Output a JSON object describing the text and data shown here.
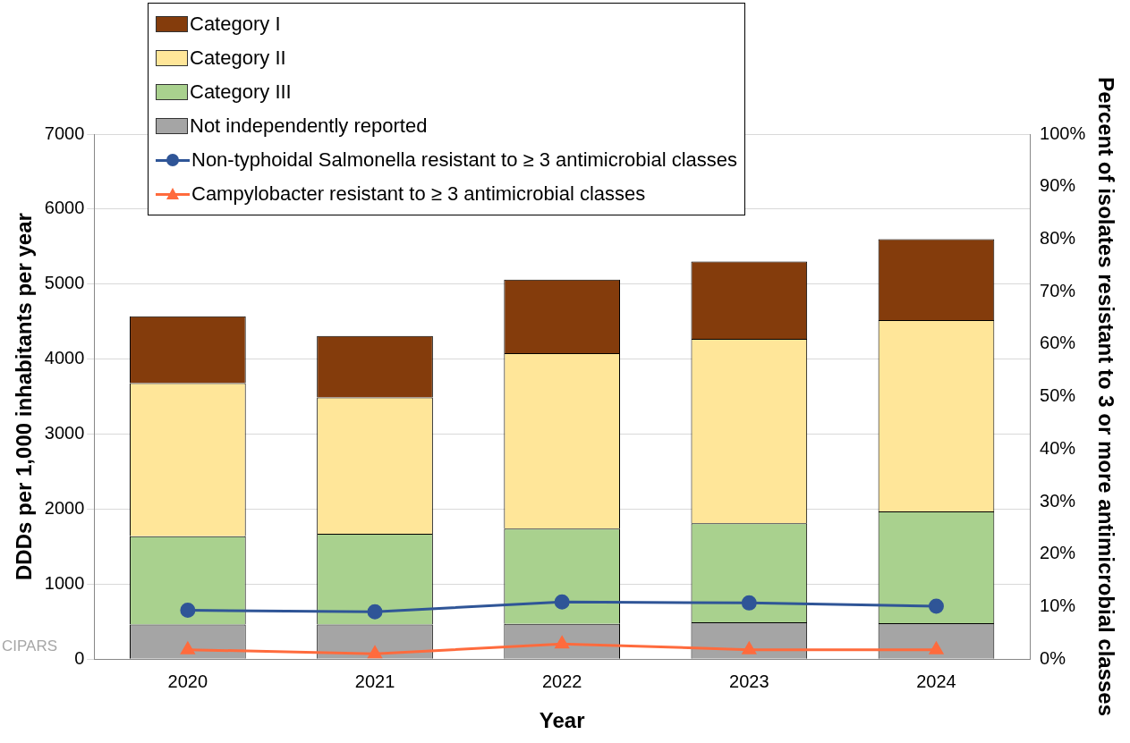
{
  "chart_data": {
    "type": "bar",
    "stacked": true,
    "xlabel": "Year",
    "ylabel": "DDDs per 1,000 inhabitants per year",
    "y2label": "Percent of isolates resistant to 3 or more antimicrobial classes",
    "categories": [
      "2020",
      "2021",
      "2022",
      "2023",
      "2024"
    ],
    "series": [
      {
        "name": "Not independently reported",
        "color": "#a5a5a5",
        "values": [
          460,
          460,
          470,
          490,
          480
        ]
      },
      {
        "name": "Category III",
        "color": "#a9d18e",
        "values": [
          1180,
          1210,
          1270,
          1320,
          1490
        ]
      },
      {
        "name": "Category II",
        "color": "#ffe699",
        "values": [
          2040,
          1820,
          2340,
          2460,
          2550
        ]
      },
      {
        "name": "Category I",
        "color": "#843c0c",
        "values": [
          890,
          820,
          980,
          1030,
          1080
        ]
      },
      {
        "name": "Non-typhoidal Salmonella resistant to ≥ 3 antimicrobial classes",
        "type": "line",
        "axis": "y2",
        "marker": "circle",
        "color": "#2f5597",
        "values": [
          9.3,
          9.0,
          10.9,
          10.7,
          10.1
        ]
      },
      {
        "name": "Campylobacter resistant to ≥ 3 antimicrobial classes",
        "type": "line",
        "axis": "y2",
        "marker": "triangle",
        "color": "#ff6b3d",
        "values": [
          1.8,
          1.0,
          2.9,
          1.8,
          1.8
        ]
      }
    ],
    "ylim": [
      0,
      7000
    ],
    "yticks": [
      0,
      1000,
      2000,
      3000,
      4000,
      5000,
      6000,
      7000
    ],
    "y2lim": [
      0,
      100
    ],
    "y2ticks": [
      {
        "value": 0,
        "label": "0%"
      },
      {
        "value": 10,
        "label": "10%"
      },
      {
        "value": 20,
        "label": "20%"
      },
      {
        "value": 30,
        "label": "30%"
      },
      {
        "value": 40,
        "label": "40%"
      },
      {
        "value": 50,
        "label": "50%"
      },
      {
        "value": 60,
        "label": "60%"
      },
      {
        "value": 70,
        "label": "70%"
      },
      {
        "value": 80,
        "label": "80%"
      },
      {
        "value": 90,
        "label": "90%"
      },
      {
        "value": 100,
        "label": "100%"
      }
    ],
    "grid": "y",
    "legend": "top left",
    "annotations": [
      "CIPARS"
    ]
  }
}
